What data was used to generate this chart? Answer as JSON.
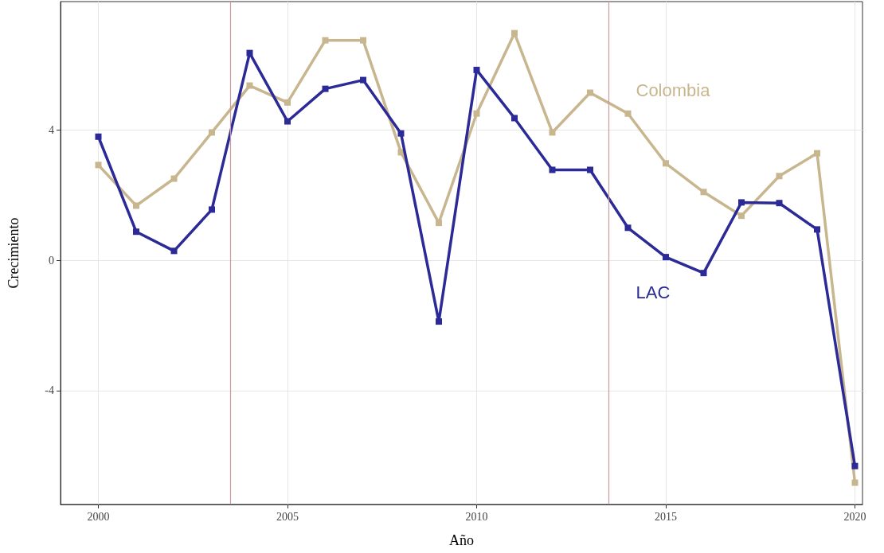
{
  "chart_data": {
    "type": "line",
    "xlabel": "Año",
    "ylabel": "Crecimiento",
    "x": [
      2000,
      2001,
      2002,
      2003,
      2004,
      2005,
      2006,
      2007,
      2008,
      2009,
      2010,
      2011,
      2012,
      2013,
      2014,
      2015,
      2016,
      2017,
      2018,
      2019,
      2020
    ],
    "series": [
      {
        "name": "Colombia",
        "color": "#c8b68f",
        "values": [
          2.93,
          1.68,
          2.51,
          3.93,
          5.37,
          4.85,
          6.76,
          6.76,
          3.32,
          1.15,
          4.51,
          6.98,
          3.93,
          5.15,
          4.51,
          2.98,
          2.1,
          1.37,
          2.59,
          3.29,
          -6.83
        ]
      },
      {
        "name": "LAC",
        "color": "#2b2a97",
        "values": [
          3.8,
          0.88,
          0.29,
          1.56,
          6.37,
          4.27,
          5.27,
          5.54,
          3.9,
          -1.88,
          5.85,
          4.37,
          2.78,
          2.78,
          1.0,
          0.1,
          -0.39,
          1.78,
          1.76,
          0.95,
          -6.32
        ]
      }
    ],
    "xlim": [
      1999,
      2020.2
    ],
    "xticks": [
      2000,
      2005,
      2010,
      2015,
      2020
    ],
    "ylim": [
      -7.5,
      7.95
    ],
    "yticks": [
      -4,
      0,
      4
    ],
    "ref_lines": [
      {
        "axis": "x",
        "value": 2003.5,
        "color": "#c99aa0"
      },
      {
        "axis": "x",
        "value": 2013.5,
        "color": "#c99aa0"
      }
    ],
    "grid": true,
    "marker": "square",
    "line_style": "solid"
  }
}
